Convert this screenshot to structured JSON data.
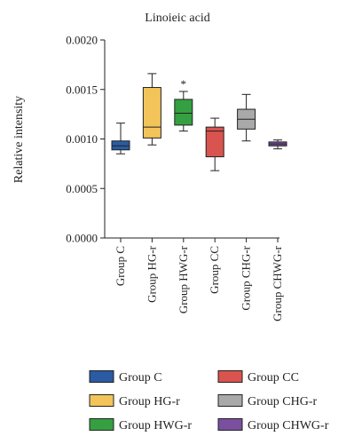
{
  "chart_data": {
    "type": "box",
    "title": "Linoieic acid",
    "ylabel": "Relative intensity",
    "xlabel": "",
    "ylim": [
      0,
      0.002
    ],
    "yticks": [
      "0.0000",
      "0.0005",
      "0.0010",
      "0.0015",
      "0.0020"
    ],
    "ytick_values": [
      0,
      0.0005,
      0.001,
      0.0015,
      0.002
    ],
    "grid": false,
    "legend_position": "bottom",
    "categories": [
      "Group C",
      "Group HG-r",
      "Group HWG-r",
      "Group CC",
      "Group CHG-r",
      "Group CHWG-r"
    ],
    "series": [
      {
        "name": "Group C",
        "color": "#2a5ba3",
        "min": 0.00085,
        "q1": 0.00089,
        "median": 0.00093,
        "q3": 0.00098,
        "max": 0.00116
      },
      {
        "name": "Group HG-r",
        "color": "#f2c45a",
        "min": 0.00094,
        "q1": 0.00101,
        "median": 0.00112,
        "q3": 0.00152,
        "max": 0.00166
      },
      {
        "name": "Group HWG-r",
        "color": "#35a041",
        "min": 0.00108,
        "q1": 0.00114,
        "median": 0.00126,
        "q3": 0.0014,
        "max": 0.00148,
        "annotation": "*"
      },
      {
        "name": "Group CC",
        "color": "#d9534f",
        "min": 0.00068,
        "q1": 0.00082,
        "median": 0.00108,
        "q3": 0.00112,
        "max": 0.00121
      },
      {
        "name": "Group CHG-r",
        "color": "#a9a9a9",
        "min": 0.00098,
        "q1": 0.0011,
        "median": 0.0012,
        "q3": 0.0013,
        "max": 0.00145
      },
      {
        "name": "Group CHWG-r",
        "color": "#7b4fa0",
        "min": 0.0009,
        "q1": 0.00093,
        "median": 0.00095,
        "q3": 0.00097,
        "max": 0.00099
      }
    ]
  }
}
